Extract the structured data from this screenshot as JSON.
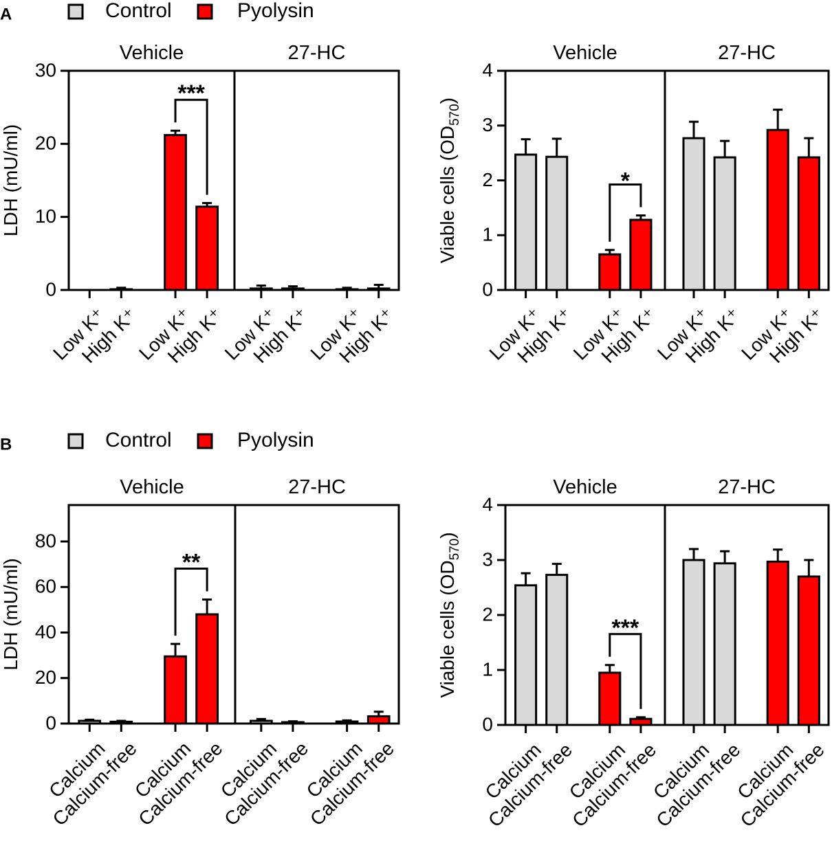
{
  "panels": [
    {
      "label": "A"
    },
    {
      "label": "B"
    }
  ],
  "chart_data": [
    {
      "type": "bar",
      "ylabel": "LDH (mU/ml)",
      "ylim": [
        0,
        30
      ],
      "yticks": [
        0,
        10,
        20,
        30
      ],
      "sections": [
        "Vehicle",
        "27-HC"
      ],
      "categories": [
        "Low K⁺",
        "High K⁺",
        "Low K⁺",
        "High K⁺",
        "Low K⁺",
        "High K⁺",
        "Low K⁺",
        "High K⁺"
      ],
      "series": [
        {
          "name": "Control",
          "color": "#d9d9d9",
          "values": [
            0,
            0.1,
            null,
            null,
            0.2,
            0.2,
            null,
            null
          ],
          "errors": [
            0,
            0.2,
            null,
            null,
            0.4,
            0.3,
            null,
            null
          ]
        },
        {
          "name": "Pyolysin",
          "color": "#ff0000",
          "values": [
            null,
            null,
            21.2,
            11.4,
            null,
            null,
            0.1,
            0.2
          ],
          "errors": [
            null,
            null,
            0.6,
            0.5,
            null,
            null,
            0.2,
            0.5
          ]
        }
      ],
      "annotations": [
        {
          "text": "***",
          "from": 2,
          "to": 3
        }
      ]
    },
    {
      "type": "bar",
      "ylabel": [
        "Viable cells (OD",
        "570",
        ")"
      ],
      "ylim": [
        0,
        4
      ],
      "yticks": [
        0,
        1,
        2,
        3,
        4
      ],
      "sections": [
        "Vehicle",
        "27-HC"
      ],
      "categories": [
        "Low K⁺",
        "High K⁺",
        "Low K⁺",
        "High K⁺",
        "Low K⁺",
        "High K⁺",
        "Low K⁺",
        "High K⁺"
      ],
      "series": [
        {
          "name": "Control",
          "color": "#d9d9d9",
          "values": [
            2.47,
            2.43,
            null,
            null,
            2.77,
            2.42,
            null,
            null
          ],
          "errors": [
            0.28,
            0.33,
            null,
            null,
            0.3,
            0.3,
            null,
            null
          ]
        },
        {
          "name": "Pyolysin",
          "color": "#ff0000",
          "values": [
            null,
            null,
            0.65,
            1.28,
            null,
            null,
            2.92,
            2.42
          ],
          "errors": [
            null,
            null,
            0.08,
            0.08,
            null,
            null,
            0.37,
            0.35
          ]
        }
      ],
      "annotations": [
        {
          "text": "*",
          "from": 2,
          "to": 3
        }
      ]
    },
    {
      "type": "bar",
      "ylabel": "LDH (mU/ml)",
      "ylim": [
        0,
        96
      ],
      "yticks": [
        0,
        20,
        40,
        60,
        80
      ],
      "sections": [
        "Vehicle",
        "27-HC"
      ],
      "categories": [
        "Calcium",
        "Calcium-free",
        "Calcium",
        "Calcium-free",
        "Calcium",
        "Calcium-free",
        "Calcium",
        "Calcium-free"
      ],
      "series": [
        {
          "name": "Control",
          "color": "#d9d9d9",
          "values": [
            1.2,
            0.8,
            null,
            null,
            1.2,
            0.6,
            null,
            null
          ],
          "errors": [
            0.5,
            0.4,
            null,
            null,
            0.8,
            0.4,
            null,
            null
          ]
        },
        {
          "name": "Pyolysin",
          "color": "#ff0000",
          "values": [
            null,
            null,
            29.5,
            48,
            null,
            null,
            0.9,
            3.2
          ],
          "errors": [
            null,
            null,
            5.5,
            6.5,
            null,
            null,
            0.5,
            2
          ]
        }
      ],
      "annotations": [
        {
          "text": "**",
          "from": 2,
          "to": 3
        }
      ]
    },
    {
      "type": "bar",
      "ylabel": [
        "Viable cells (OD",
        "570",
        ")"
      ],
      "ylim": [
        0,
        4
      ],
      "yticks": [
        0,
        1,
        2,
        3,
        4
      ],
      "sections": [
        "Vehicle",
        "27-HC"
      ],
      "categories": [
        "Calcium",
        "Calcium-free",
        "Calcium",
        "Calcium-free",
        "Calcium",
        "Calcium-free",
        "Calcium",
        "Calcium-free"
      ],
      "series": [
        {
          "name": "Control",
          "color": "#d9d9d9",
          "values": [
            2.54,
            2.73,
            null,
            null,
            3.0,
            2.94,
            null,
            null
          ],
          "errors": [
            0.22,
            0.2,
            null,
            null,
            0.2,
            0.22,
            null,
            null
          ]
        },
        {
          "name": "Pyolysin",
          "color": "#ff0000",
          "values": [
            null,
            null,
            0.95,
            0.11,
            null,
            null,
            2.97,
            2.7
          ],
          "errors": [
            null,
            null,
            0.14,
            0.03,
            null,
            null,
            0.22,
            0.3
          ]
        }
      ],
      "annotations": [
        {
          "text": "***",
          "from": 2,
          "to": 3
        }
      ]
    }
  ]
}
